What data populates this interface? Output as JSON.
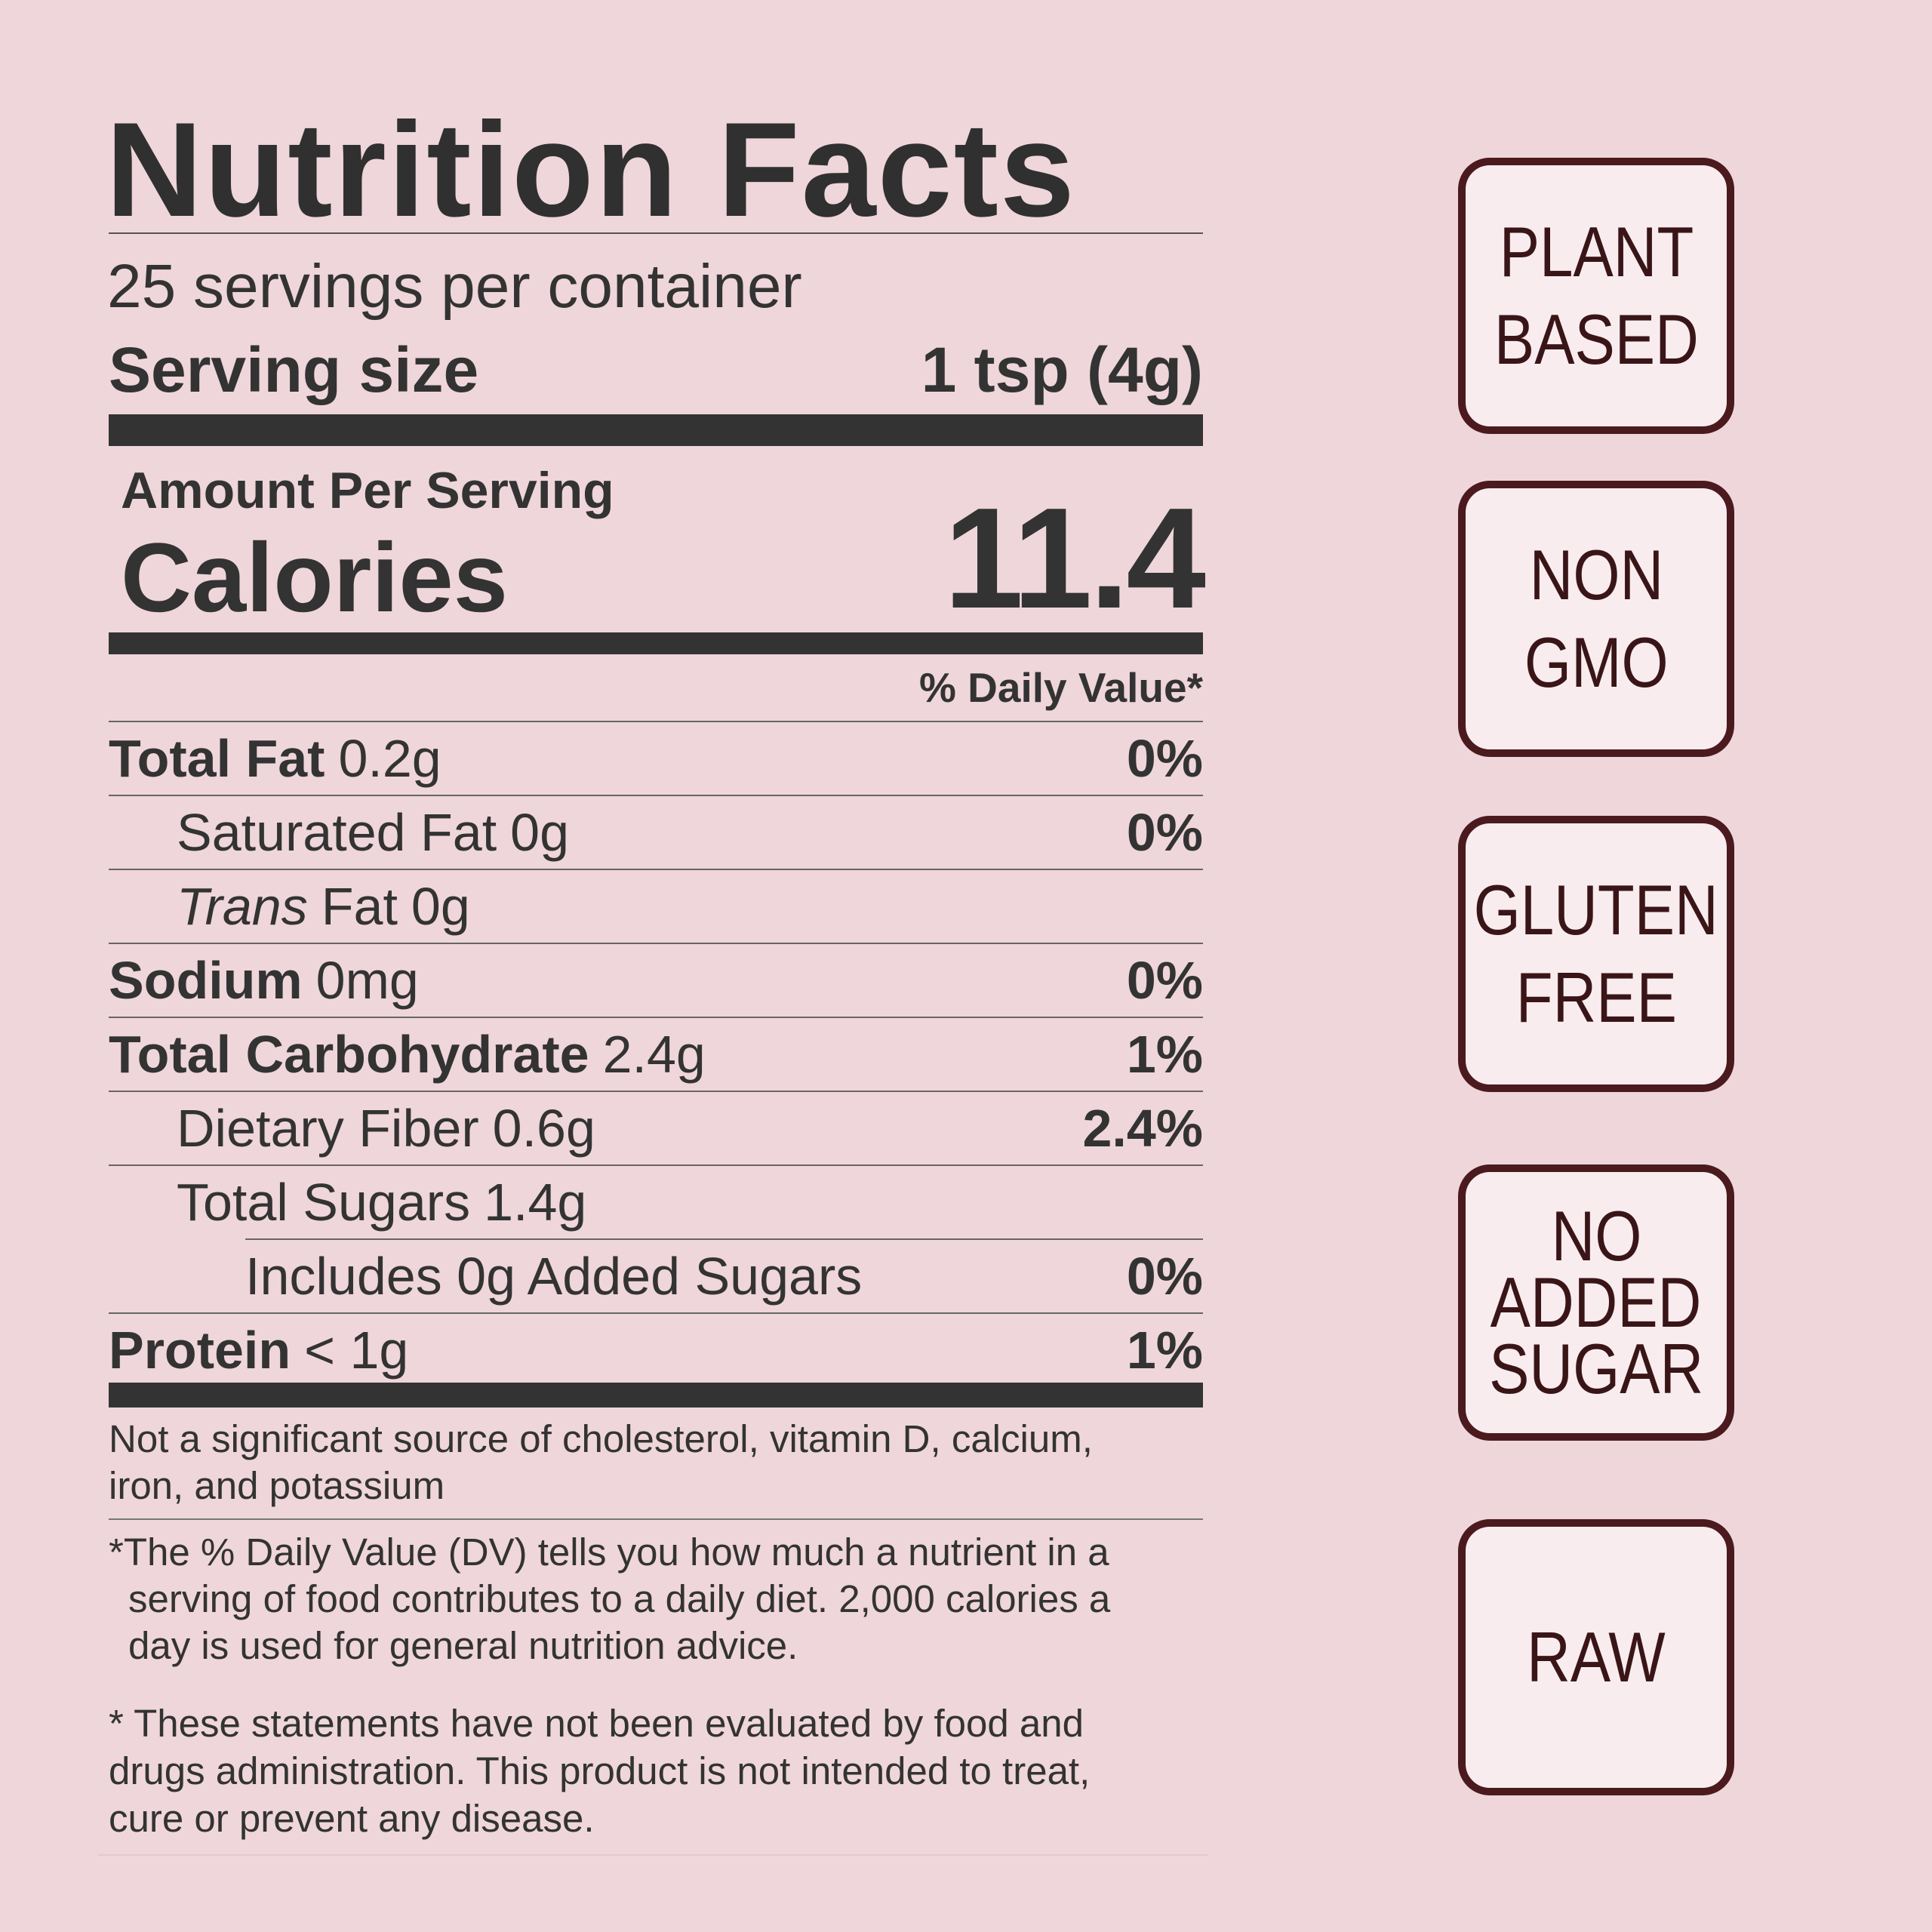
{
  "label": {
    "title": "Nutrition Facts",
    "servings": "25 servings per container",
    "serving_size": {
      "label": "Serving size",
      "value": "1 tsp (4g)"
    },
    "amount_per_serving": "Amount Per Serving",
    "calories": {
      "label": "Calories",
      "value": "11.4"
    },
    "dv_header": "% Daily Value*",
    "rows": [
      {
        "name": "Total Fat",
        "amount": "0.2g",
        "dv": "0%",
        "bold": true,
        "indent": 0
      },
      {
        "name": "Saturated Fat",
        "amount": "0g",
        "dv": "0%",
        "bold": false,
        "indent": 1
      },
      {
        "name_italic": "Trans",
        "name": "Fat",
        "amount": "0g",
        "bold": false,
        "indent": 1
      },
      {
        "name": "Sodium",
        "amount": "0mg",
        "dv": "0%",
        "bold": true,
        "indent": 0
      },
      {
        "name": "Total Carbohydrate",
        "amount": "2.4g",
        "dv": "1%",
        "bold": true,
        "indent": 0
      },
      {
        "name": "Dietary Fiber",
        "amount": "0.6g",
        "dv": "2.4%",
        "bold": false,
        "indent": 1
      },
      {
        "name": "Total Sugars",
        "amount": "1.4g",
        "bold": false,
        "indent": 1
      },
      {
        "name": "Includes 0g Added Sugars",
        "dv": "0%",
        "bold": false,
        "indent": 2
      },
      {
        "name": "Protein",
        "amount": "< 1g",
        "dv": "1%",
        "bold": true,
        "indent": 0
      }
    ],
    "footnote_1": "Not a significant source of cholesterol, vitamin D, calcium, iron, and potassium",
    "footnote_2": "*The % Daily Value (DV) tells you how much a nutrient in a serving of food contributes to a daily diet. 2,000 calories a day is used for general nutrition advice.",
    "footnote_3": "* These statements have not been evaluated by food and drugs administration. This product is not intended to treat, cure or prevent any disease."
  },
  "badges": [
    [
      "PLANT",
      "BASED"
    ],
    [
      "NON",
      "GMO"
    ],
    [
      "GLUTEN",
      "FREE"
    ],
    [
      "NO",
      "ADDED",
      "SUGAR"
    ],
    [
      "RAW"
    ]
  ]
}
